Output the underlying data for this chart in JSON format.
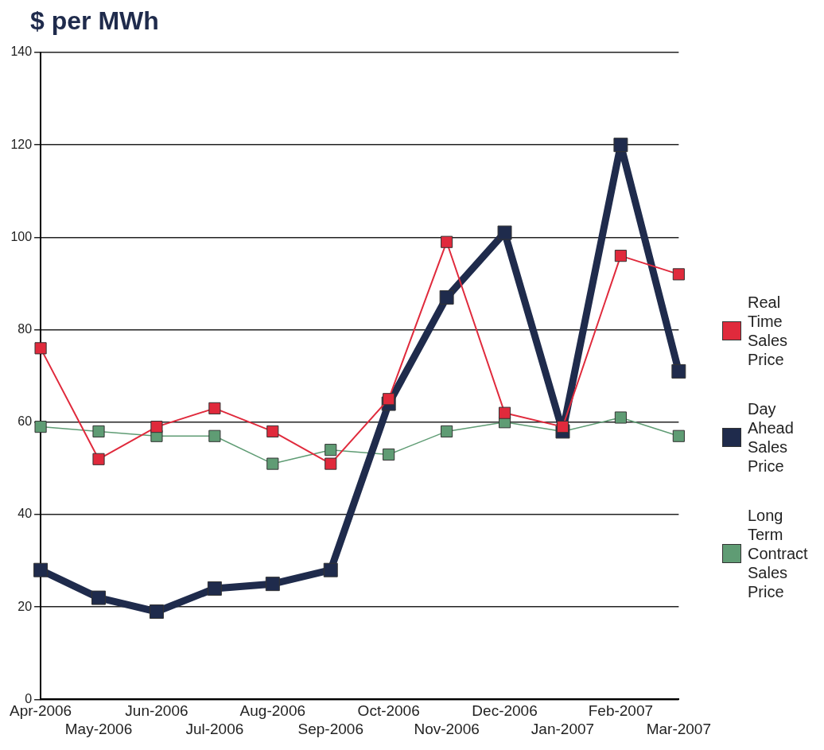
{
  "chart_data": {
    "type": "line",
    "ylabel": "$ per MWh",
    "categories": [
      "Apr-2006",
      "May-2006",
      "Jun-2006",
      "Jul-2006",
      "Aug-2006",
      "Sep-2006",
      "Oct-2006",
      "Nov-2006",
      "Dec-2006",
      "Jan-2007",
      "Feb-2007",
      "Mar-2007"
    ],
    "series": [
      {
        "name": "Real Time Sales Price",
        "color": "#e02a3c",
        "values": [
          76,
          52,
          59,
          63,
          58,
          51,
          65,
          99,
          62,
          59,
          96,
          92
        ]
      },
      {
        "name": "Day Ahead Sales Price",
        "color": "#1f2b4c",
        "values": [
          28,
          22,
          19,
          24,
          25,
          28,
          64,
          87,
          101,
          58,
          120,
          71
        ]
      },
      {
        "name": "Long Term Contract Sales Price",
        "color": "#5f9c74",
        "values": [
          59,
          58,
          57,
          57,
          51,
          54,
          53,
          58,
          60,
          58,
          61,
          57
        ]
      }
    ],
    "ylim": [
      0,
      140
    ],
    "yticks": [
      0,
      20,
      40,
      60,
      80,
      100,
      120,
      140
    ],
    "grid": "y",
    "legend": "right",
    "marker": "square",
    "line_style": "solid"
  }
}
